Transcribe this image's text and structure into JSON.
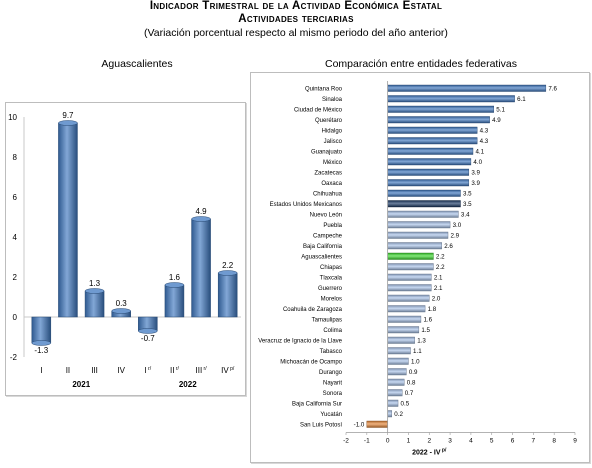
{
  "header": {
    "title": "Indicador Trimestral de la Actividad Económica Estatal",
    "subtitle": "Actividades terciarias",
    "note": "(Variación porcentual respecto al mismo periodo del año anterior)"
  },
  "chart_data": [
    {
      "type": "bar",
      "title": "Aguascalientes",
      "categories": [
        "I",
        "II",
        "III",
        "IV",
        "I",
        "II",
        "III",
        "IV"
      ],
      "category_superscripts": [
        "",
        "",
        "",
        "",
        "r/",
        "r/",
        "r/",
        "p/"
      ],
      "groups": [
        {
          "label": "2021",
          "from": 0,
          "to": 3
        },
        {
          "label": "2022",
          "from": 4,
          "to": 7
        }
      ],
      "values": [
        -1.3,
        9.7,
        1.3,
        0.3,
        -0.7,
        1.6,
        4.9,
        2.2
      ],
      "value_labels": [
        "-1.3",
        "9.7",
        "1.3",
        "0.3",
        "-0.7",
        "1.6",
        "4.9",
        "2.2"
      ],
      "ylim": [
        -2,
        10
      ],
      "yticks": [
        "-2",
        "0",
        "2",
        "4",
        "6",
        "8",
        "10"
      ],
      "colors": {
        "bar": "#3f78c0"
      }
    },
    {
      "type": "bar",
      "orientation": "horizontal",
      "title": "Comparación entre entidades federativas",
      "xlabel": "2022 - IV",
      "xlabel_superscript": "p/",
      "categories": [
        "Quintana Roo",
        "Sinaloa",
        "Ciudad de México",
        "Querétaro",
        "Hidalgo",
        "Jalisco",
        "Guanajuato",
        "México",
        "Zacatecas",
        "Oaxaca",
        "Chihuahua",
        "Estados Unidos Mexicanos",
        "Nuevo León",
        "Puebla",
        "Campeche",
        "Baja California",
        "Aguascalientes",
        "Chiapas",
        "Tlaxcala",
        "Guerrero",
        "Morelos",
        "Coahuila de Zaragoza",
        "Tamaulipas",
        "Colima",
        "Veracruz de Ignacio de la Llave",
        "Tabasco",
        "Michoacán de Ocampo",
        "Durango",
        "Nayarit",
        "Sonora",
        "Baja California Sur",
        "Yucatán",
        "San Luis Potosí"
      ],
      "values": [
        7.6,
        6.1,
        5.1,
        4.9,
        4.3,
        4.3,
        4.1,
        4.0,
        3.9,
        3.9,
        3.5,
        3.5,
        3.4,
        3.0,
        2.9,
        2.6,
        2.2,
        2.2,
        2.1,
        2.1,
        2.0,
        1.8,
        1.6,
        1.5,
        1.3,
        1.1,
        1.0,
        0.9,
        0.8,
        0.7,
        0.5,
        0.2,
        -1.0
      ],
      "value_labels": [
        "7.6",
        "6.1",
        "5.1",
        "4.9",
        "4.3",
        "4.3",
        "4.1",
        "4.0",
        "3.9",
        "3.9",
        "3.5",
        "3.5",
        "3.4",
        "3.0",
        "2.9",
        "2.6",
        "2.2",
        "2.2",
        "2.1",
        "2.1",
        "2.0",
        "1.8",
        "1.6",
        "1.5",
        "1.3",
        "1.1",
        "1.0",
        "0.9",
        "0.8",
        "0.7",
        "0.5",
        "0.2",
        "-1.0"
      ],
      "xlim": [
        -2,
        9
      ],
      "xticks": [
        "-2",
        "-1",
        "0",
        "1",
        "2",
        "3",
        "4",
        "5",
        "6",
        "7",
        "8",
        "9"
      ],
      "highlights": {
        "Estados Unidos Mexicanos": "#1c3a66",
        "Aguascalientes": "#3ddc2f",
        "San Luis Potosí": "#e8893a"
      },
      "colors": {
        "above_national": "#3f78c0",
        "below_national": "#a9c3ea"
      }
    }
  ]
}
